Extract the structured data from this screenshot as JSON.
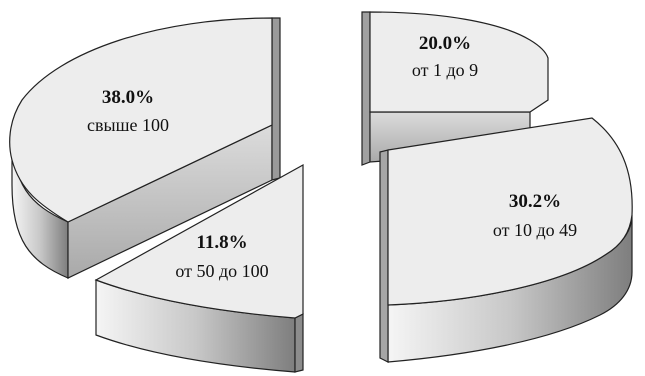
{
  "chart_data": {
    "type": "pie",
    "style": "3d-exploded",
    "slices": [
      {
        "percent_label": "20.0%",
        "label": "от 1 до 9",
        "value": 20.0
      },
      {
        "percent_label": "30.2%",
        "label": "от 10 до 49",
        "value": 30.2
      },
      {
        "percent_label": "11.8%",
        "label": "от 50 до 100",
        "value": 11.8
      },
      {
        "percent_label": "38.0%",
        "label": "свыше 100",
        "value": 38.0
      }
    ]
  },
  "colors": {
    "top_face": "#ededed",
    "side_light": "#f4f4f4",
    "side_dark": "#8a8a8a",
    "outline": "#222222"
  }
}
